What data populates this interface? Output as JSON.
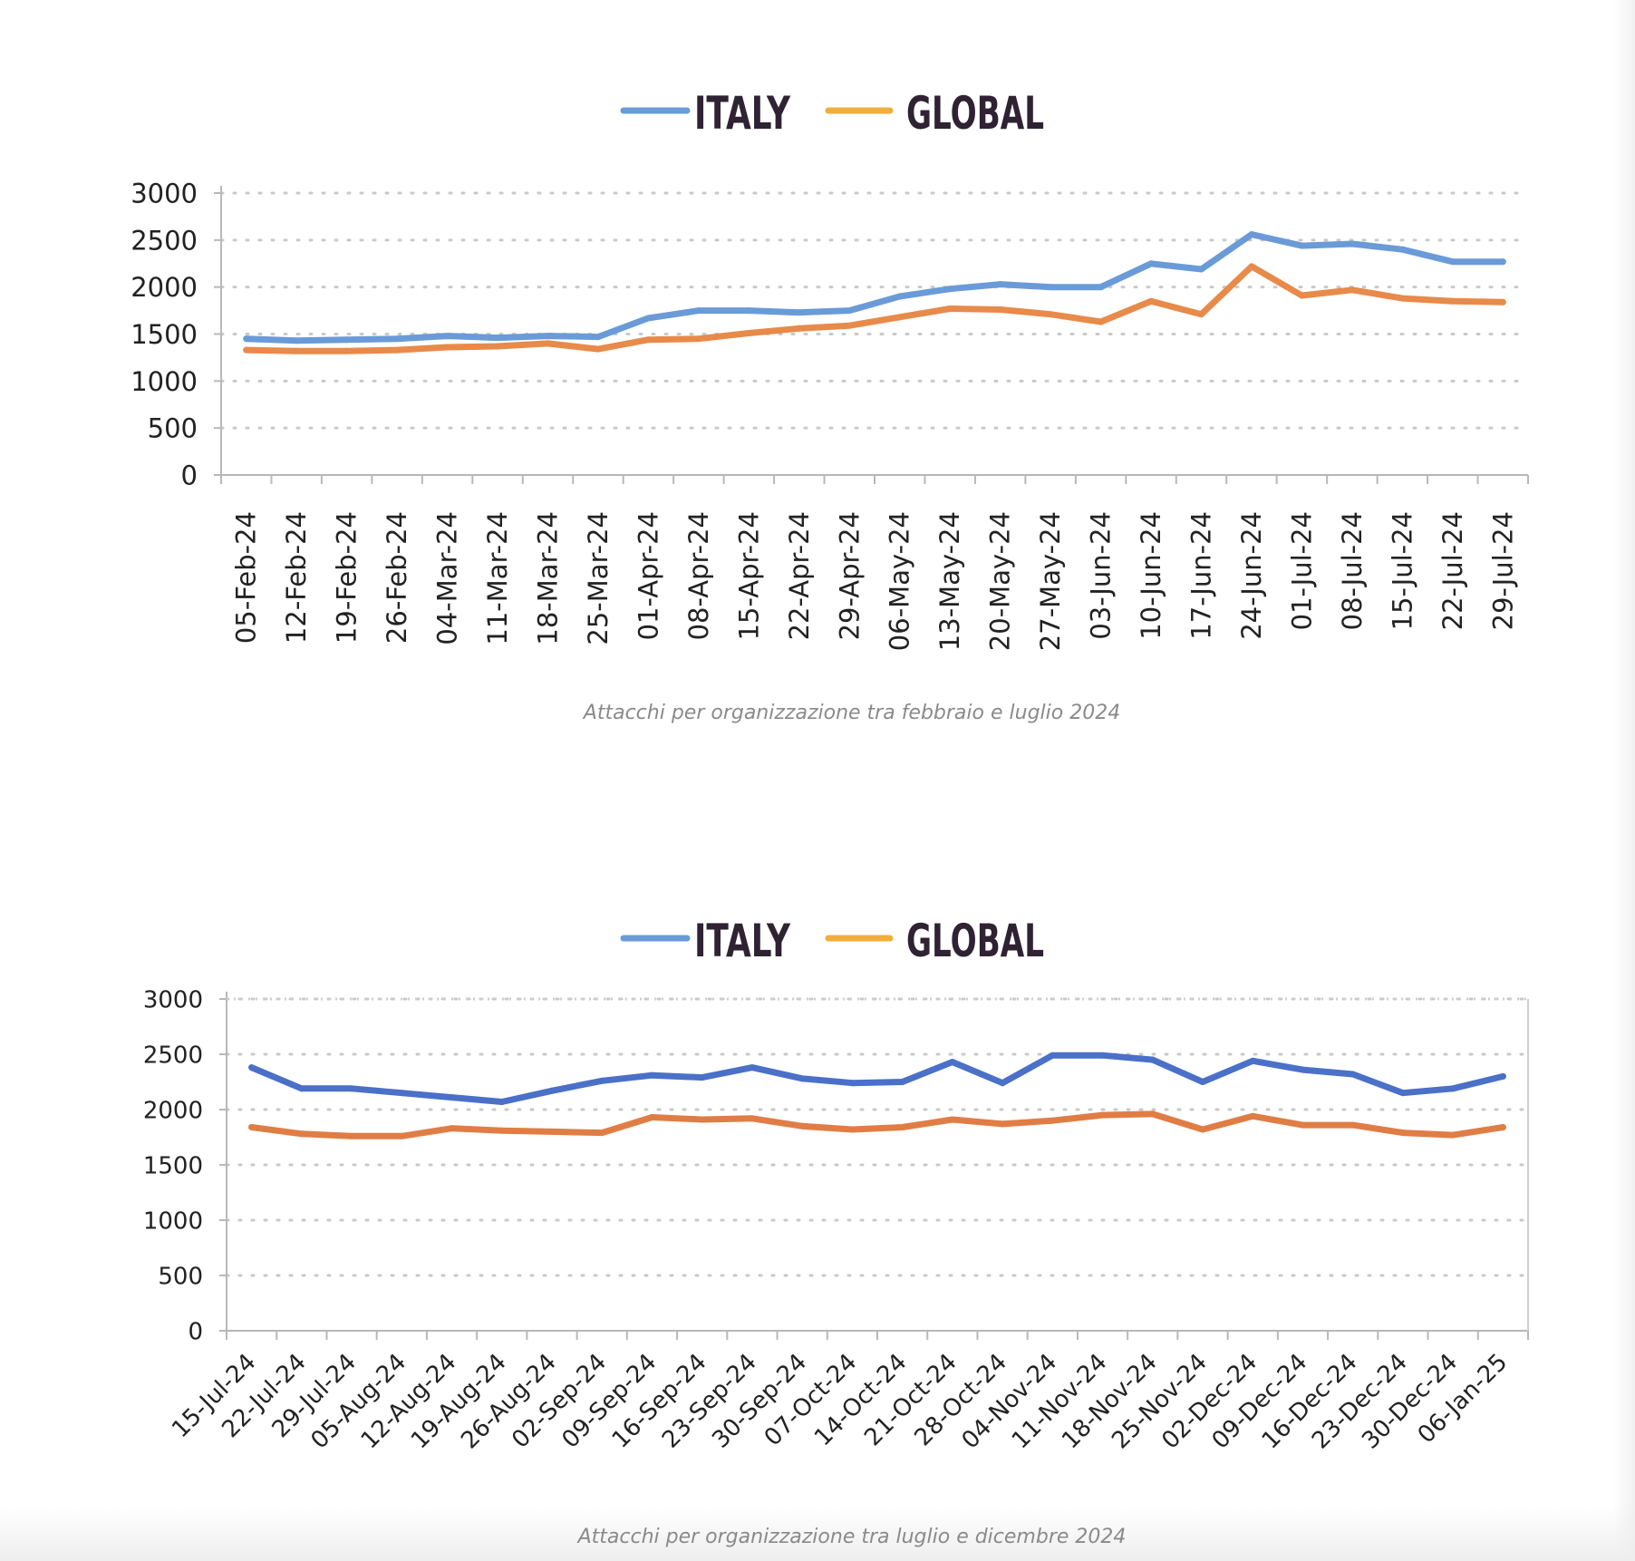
{
  "chart_data": [
    {
      "type": "line",
      "legend_position": "top-center",
      "grid": true,
      "ylim": [
        0,
        3000
      ],
      "yticks": [
        "0",
        "500",
        "1000",
        "1500",
        "2000",
        "2500",
        "3000"
      ],
      "categories": [
        "05-Feb-24",
        "12-Feb-24",
        "19-Feb-24",
        "26-Feb-24",
        "04-Mar-24",
        "11-Mar-24",
        "18-Mar-24",
        "25-Mar-24",
        "01-Apr-24",
        "08-Apr-24",
        "15-Apr-24",
        "22-Apr-24",
        "29-Apr-24",
        "06-May-24",
        "13-May-24",
        "20-May-24",
        "27-May-24",
        "03-Jun-24",
        "10-Jun-24",
        "17-Jun-24",
        "24-Jun-24",
        "01-Jul-24",
        "08-Jul-24",
        "15-Jul-24",
        "22-Jul-24",
        "29-Jul-24"
      ],
      "series": [
        {
          "name": "ITALY",
          "color": "#6a9bd8",
          "values": [
            1450,
            1430,
            1440,
            1450,
            1480,
            1460,
            1480,
            1470,
            1670,
            1750,
            1750,
            1730,
            1750,
            1900,
            1980,
            2030,
            2000,
            2000,
            2250,
            2190,
            2560,
            2440,
            2460,
            2400,
            2270,
            2270
          ]
        },
        {
          "name": "GLOBAL",
          "color": "#e88a4a",
          "values": [
            1330,
            1320,
            1320,
            1330,
            1360,
            1370,
            1400,
            1340,
            1440,
            1450,
            1510,
            1560,
            1590,
            1680,
            1770,
            1760,
            1710,
            1630,
            1850,
            1710,
            2220,
            1910,
            1970,
            1880,
            1850,
            1840
          ]
        }
      ],
      "caption": "Attacchi per organizzazione tra febbraio e luglio 2024"
    },
    {
      "type": "line",
      "legend_position": "top-center",
      "grid": true,
      "ylim": [
        0,
        3000
      ],
      "yticks": [
        "0",
        "500",
        "1000",
        "1500",
        "2000",
        "2500",
        "3000"
      ],
      "categories": [
        "15-Jul-24",
        "22-Jul-24",
        "29-Jul-24",
        "05-Aug-24",
        "12-Aug-24",
        "19-Aug-24",
        "26-Aug-24",
        "02-Sep-24",
        "09-Sep-24",
        "16-Sep-24",
        "23-Sep-24",
        "30-Sep-24",
        "07-Oct-24",
        "14-Oct-24",
        "21-Oct-24",
        "28-Oct-24",
        "04-Nov-24",
        "11-Nov-24",
        "18-Nov-24",
        "25-Nov-24",
        "02-Dec-24",
        "09-Dec-24",
        "16-Dec-24",
        "23-Dec-24",
        "30-Dec-24",
        "06-Jan-25"
      ],
      "series": [
        {
          "name": "ITALY",
          "color": "#4a70c8",
          "values": [
            2380,
            2190,
            2190,
            2150,
            2110,
            2070,
            2170,
            2260,
            2310,
            2290,
            2380,
            2280,
            2240,
            2250,
            2430,
            2240,
            2490,
            2490,
            2450,
            2250,
            2440,
            2360,
            2320,
            2150,
            2190,
            2300
          ]
        },
        {
          "name": "GLOBAL",
          "color": "#e07d45",
          "values": [
            1840,
            1780,
            1760,
            1760,
            1830,
            1810,
            1800,
            1790,
            1930,
            1910,
            1920,
            1850,
            1820,
            1840,
            1910,
            1870,
            1900,
            1950,
            1960,
            1820,
            1940,
            1860,
            1860,
            1790,
            1770,
            1840
          ]
        }
      ],
      "caption": "Attacchi per organizzazione tra luglio e dicembre 2024"
    }
  ],
  "legend_colors": {
    "italy": "#6a9bd8",
    "global": "#f0ae3c"
  }
}
